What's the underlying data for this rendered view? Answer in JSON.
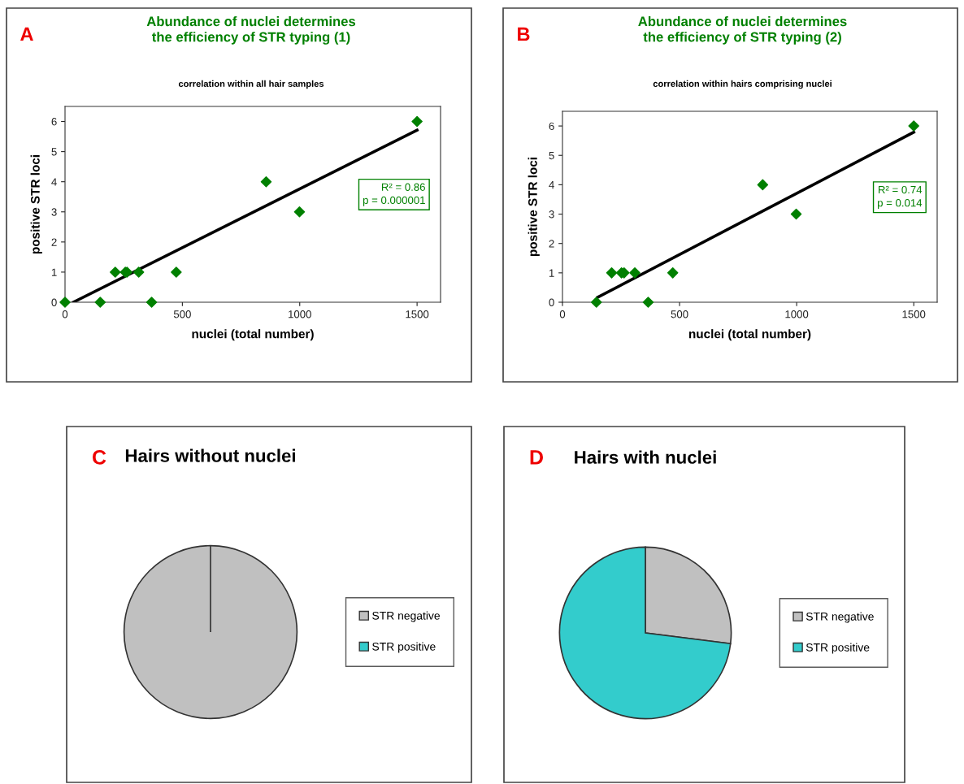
{
  "chart_data": [
    {
      "type": "scatter",
      "title": "Abundance of nuclei determines\nthe efficiency of STR typing (1)",
      "subtitle": "correlation within all hair samples",
      "xlabel": "nuclei (total number)",
      "ylabel": "positive STR loci",
      "xlim": [
        0,
        1600
      ],
      "ylim": [
        0,
        6.5
      ],
      "xticks": [
        0,
        500,
        1000,
        1500
      ],
      "yticks": [
        0,
        1,
        2,
        3,
        4,
        5,
        6
      ],
      "grid": false,
      "legend": false,
      "annotations": [
        "A",
        "R² = 0.86\np = 0.000001"
      ],
      "series": [
        {
          "type": "scatter",
          "marker": "diamond",
          "color": "#008000",
          "x": [
            0,
            150,
            214,
            257,
            264,
            314,
            369,
            474,
            857,
            999,
            1500
          ],
          "values": [
            0,
            0,
            1,
            1,
            1,
            1,
            0,
            1,
            4,
            3,
            6
          ]
        },
        {
          "type": "line",
          "marker": "none",
          "color": "#000000",
          "x": [
            35,
            1500
          ],
          "values": [
            0,
            5.71
          ]
        }
      ]
    },
    {
      "type": "scatter",
      "title": "Abundance of nuclei determines\nthe efficiency of STR typing (2)",
      "subtitle": "correlation within hairs comprising nuclei",
      "xlabel": "nuclei (total number)",
      "ylabel": "positive STR loci",
      "xlim": [
        0,
        1600
      ],
      "ylim": [
        0,
        6.5
      ],
      "xticks": [
        0,
        500,
        1000,
        1500
      ],
      "yticks": [
        0,
        1,
        2,
        3,
        4,
        5,
        6
      ],
      "grid": false,
      "legend": false,
      "annotations": [
        "B",
        "R² = 0.74\np = 0.014"
      ],
      "series": [
        {
          "type": "scatter",
          "marker": "diamond",
          "color": "#008000",
          "x": [
            145,
            210,
            252,
            263,
            309,
            366,
            471,
            855,
            998,
            1500
          ],
          "values": [
            0,
            1,
            1,
            1,
            1,
            0,
            1,
            4,
            3,
            6
          ]
        },
        {
          "type": "line",
          "marker": "none",
          "color": "#000000",
          "x": [
            151,
            1500
          ],
          "values": [
            0.17,
            5.79
          ]
        }
      ]
    },
    {
      "type": "pie",
      "title": "Hairs without nuclei",
      "annotations": [
        "C"
      ],
      "legend": "right",
      "categories": [
        "STR negative",
        "STR positive"
      ],
      "values": [
        100,
        0
      ],
      "colors": [
        "#c0c0c0",
        "#33cccc"
      ]
    },
    {
      "type": "pie",
      "title": "Hairs with nuclei",
      "annotations": [
        "D"
      ],
      "legend": "right",
      "categories": [
        "STR negative",
        "STR positive"
      ],
      "values": [
        27,
        73
      ],
      "colors": [
        "#c0c0c0",
        "#33cccc"
      ]
    }
  ]
}
